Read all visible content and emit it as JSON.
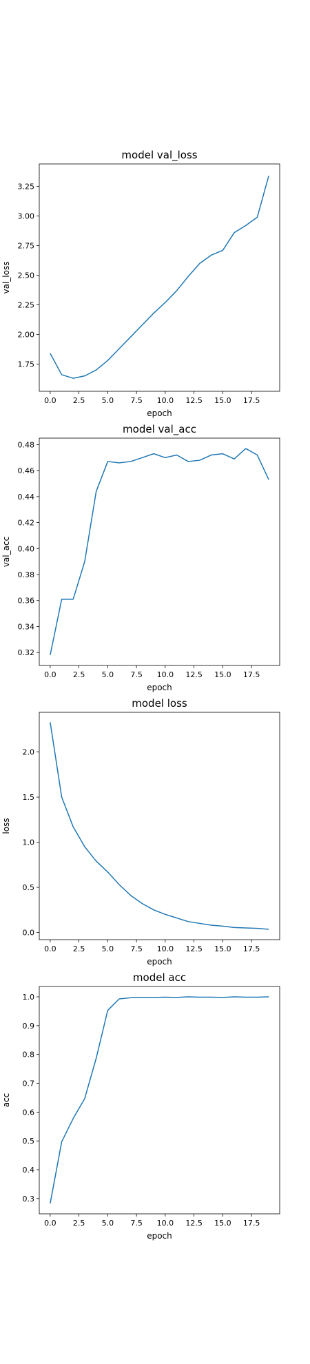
{
  "figure": {
    "line_color": "#1f77b4",
    "grid": false,
    "legend": "none"
  },
  "chart_data": [
    {
      "type": "line",
      "title": "model val_loss",
      "xlabel": "epoch",
      "ylabel": "val_loss",
      "x": [
        0,
        1,
        2,
        3,
        4,
        5,
        6,
        7,
        8,
        9,
        10,
        11,
        12,
        13,
        14,
        15,
        16,
        17,
        18,
        19
      ],
      "series": [
        {
          "values": [
            1.84,
            1.66,
            1.63,
            1.65,
            1.7,
            1.78,
            1.88,
            1.98,
            2.08,
            2.18,
            2.27,
            2.37,
            2.49,
            2.6,
            2.67,
            2.71,
            2.86,
            2.92,
            2.99,
            3.34
          ]
        }
      ],
      "xlim": [
        -0.95,
        19.95
      ],
      "ylim": [
        1.52,
        3.44
      ],
      "xticks": [
        0,
        2.5,
        5,
        7.5,
        10,
        12.5,
        15,
        17.5
      ],
      "xtick_labels": [
        "0.0",
        "2.5",
        "5.0",
        "7.5",
        "10.0",
        "12.5",
        "15.0",
        "17.5"
      ],
      "yticks": [
        1.75,
        2.0,
        2.25,
        2.5,
        2.75,
        3.0,
        3.25
      ],
      "ytick_labels": [
        "1.75",
        "2.00",
        "2.25",
        "2.50",
        "2.75",
        "3.00",
        "3.25"
      ]
    },
    {
      "type": "line",
      "title": "model val_acc",
      "xlabel": "epoch",
      "ylabel": "val_acc",
      "x": [
        0,
        1,
        2,
        3,
        4,
        5,
        6,
        7,
        8,
        9,
        10,
        11,
        12,
        13,
        14,
        15,
        16,
        17,
        18,
        19
      ],
      "series": [
        {
          "values": [
            0.318,
            0.361,
            0.361,
            0.39,
            0.444,
            0.467,
            0.466,
            0.467,
            0.47,
            0.473,
            0.47,
            0.472,
            0.467,
            0.468,
            0.472,
            0.473,
            0.469,
            0.477,
            0.472,
            0.453
          ]
        }
      ],
      "xlim": [
        -0.95,
        19.95
      ],
      "ylim": [
        0.31,
        0.485
      ],
      "xticks": [
        0,
        2.5,
        5,
        7.5,
        10,
        12.5,
        15,
        17.5
      ],
      "xtick_labels": [
        "0.0",
        "2.5",
        "5.0",
        "7.5",
        "10.0",
        "12.5",
        "15.0",
        "17.5"
      ],
      "yticks": [
        0.32,
        0.34,
        0.36,
        0.38,
        0.4,
        0.42,
        0.44,
        0.46,
        0.48
      ],
      "ytick_labels": [
        "0.32",
        "0.34",
        "0.36",
        "0.38",
        "0.40",
        "0.42",
        "0.44",
        "0.46",
        "0.48"
      ]
    },
    {
      "type": "line",
      "title": "model loss",
      "xlabel": "epoch",
      "ylabel": "loss",
      "x": [
        0,
        1,
        2,
        3,
        4,
        5,
        6,
        7,
        8,
        9,
        10,
        11,
        12,
        13,
        14,
        15,
        16,
        17,
        18,
        19
      ],
      "series": [
        {
          "values": [
            2.33,
            1.5,
            1.17,
            0.95,
            0.79,
            0.67,
            0.53,
            0.41,
            0.32,
            0.25,
            0.2,
            0.16,
            0.12,
            0.1,
            0.08,
            0.07,
            0.055,
            0.05,
            0.045,
            0.035
          ]
        }
      ],
      "xlim": [
        -0.95,
        19.95
      ],
      "ylim": [
        -0.08,
        2.44
      ],
      "xticks": [
        0,
        2.5,
        5,
        7.5,
        10,
        12.5,
        15,
        17.5
      ],
      "xtick_labels": [
        "0.0",
        "2.5",
        "5.0",
        "7.5",
        "10.0",
        "12.5",
        "15.0",
        "17.5"
      ],
      "yticks": [
        0.0,
        0.5,
        1.0,
        1.5,
        2.0
      ],
      "ytick_labels": [
        "0.0",
        "0.5",
        "1.0",
        "1.5",
        "2.0"
      ]
    },
    {
      "type": "line",
      "title": "model acc",
      "xlabel": "epoch",
      "ylabel": "acc",
      "x": [
        0,
        1,
        2,
        3,
        4,
        5,
        6,
        7,
        8,
        9,
        10,
        11,
        12,
        13,
        14,
        15,
        16,
        17,
        18,
        19
      ],
      "series": [
        {
          "values": [
            0.283,
            0.497,
            0.578,
            0.647,
            0.787,
            0.953,
            0.993,
            0.997,
            0.998,
            0.998,
            0.999,
            0.998,
            1.0,
            0.999,
            0.999,
            0.998,
            1.0,
            0.999,
            0.999,
            1.0
          ]
        }
      ],
      "xlim": [
        -0.95,
        19.95
      ],
      "ylim": [
        0.247,
        1.036
      ],
      "xticks": [
        0,
        2.5,
        5,
        7.5,
        10,
        12.5,
        15,
        17.5
      ],
      "xtick_labels": [
        "0.0",
        "2.5",
        "5.0",
        "7.5",
        "10.0",
        "12.5",
        "15.0",
        "17.5"
      ],
      "yticks": [
        0.3,
        0.4,
        0.5,
        0.6,
        0.7,
        0.8,
        0.9,
        1.0
      ],
      "ytick_labels": [
        "0.3",
        "0.4",
        "0.5",
        "0.6",
        "0.7",
        "0.8",
        "0.9",
        "1.0"
      ]
    }
  ]
}
